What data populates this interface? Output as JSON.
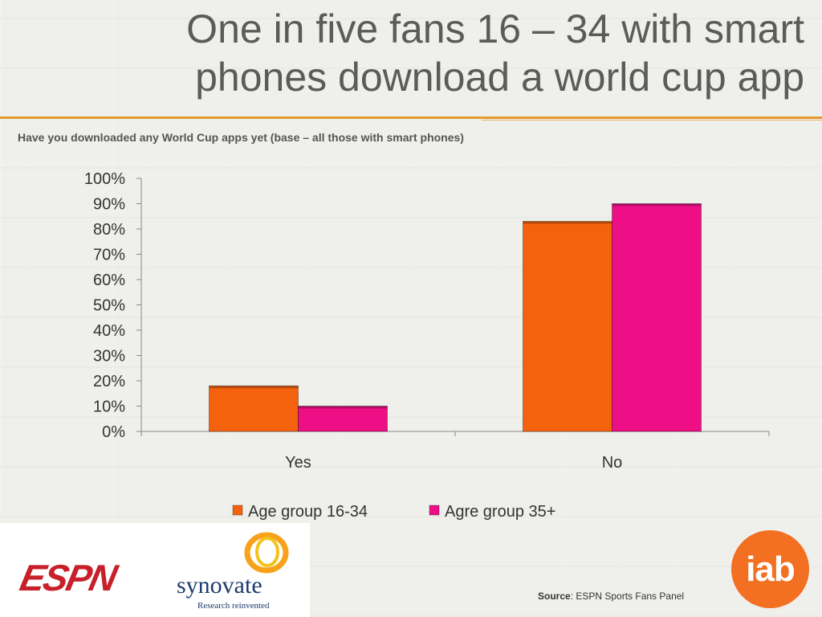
{
  "slide": {
    "title_line1": "One in five fans 16 – 34 with smart",
    "title_line2": "phones download a world cup app",
    "subtitle": "Have you downloaded any World Cup apps yet (base – all those with smart phones)",
    "source_label": "Source",
    "source_text": ": ESPN Sports Fans Panel"
  },
  "logos": {
    "espn": "ESPN",
    "synovate": "synovate",
    "synovate_tagline": "Research reinvented",
    "iab": "iab"
  },
  "colors": {
    "series1": "#f5620e",
    "series2": "#ee0f86",
    "accent_rule": "#e59a2d",
    "title_text": "#5b5b5b"
  },
  "chart_data": {
    "type": "bar",
    "categories": [
      "Yes",
      "No"
    ],
    "series": [
      {
        "name": "Age group 16-34",
        "values": [
          18,
          83
        ],
        "color": "#f5620e"
      },
      {
        "name": "Agre group 35+",
        "values": [
          10,
          90
        ],
        "color": "#ee0f86"
      }
    ],
    "y_ticks": [
      "0%",
      "10%",
      "20%",
      "30%",
      "40%",
      "50%",
      "60%",
      "70%",
      "80%",
      "90%",
      "100%"
    ],
    "ylim": [
      0,
      100
    ],
    "legend_position": "bottom",
    "grid": false
  }
}
